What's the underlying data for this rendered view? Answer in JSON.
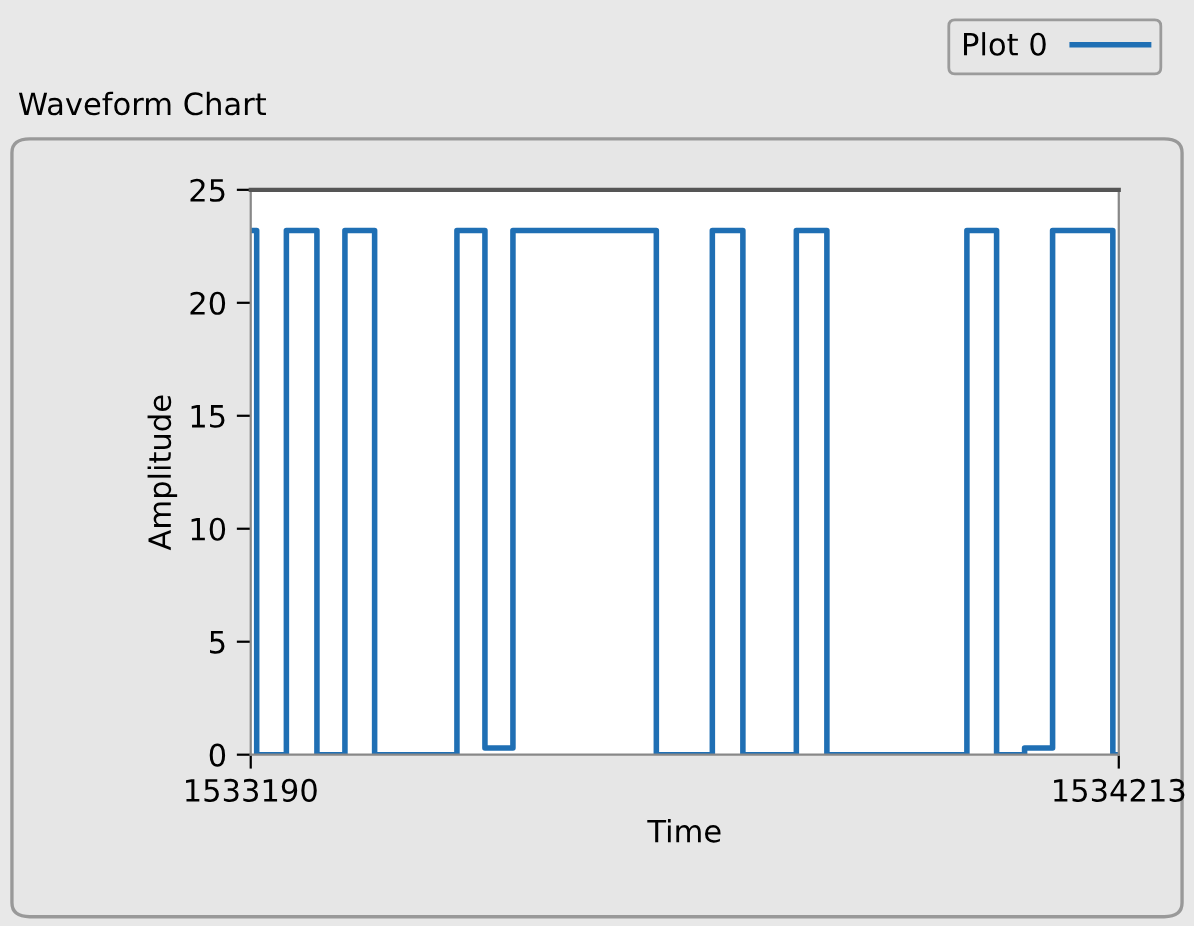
{
  "chart_data": {
    "type": "step",
    "title": "Waveform Chart",
    "xlabel": "Time",
    "ylabel": "Amplitude",
    "x": [
      1533190,
      1533197,
      1533232,
      1533268,
      1533301,
      1533336,
      1533433,
      1533466,
      1533499,
      1533668,
      1533734,
      1533770,
      1533833,
      1533869,
      1534034,
      1534069,
      1534102,
      1534135,
      1534206,
      1534213
    ],
    "series": [
      {
        "name": "Plot 0",
        "color": "#1f6fb4",
        "values": [
          23.2,
          0,
          23.2,
          0,
          23.2,
          0,
          23.2,
          0.3,
          23.2,
          0,
          23.2,
          0,
          23.2,
          0,
          23.2,
          0,
          0.3,
          23.2,
          0,
          0
        ]
      }
    ],
    "xlim": [
      1533190,
      1534213
    ],
    "xticks": [
      1533190,
      1534213
    ],
    "ylim": [
      0,
      25
    ],
    "yticks": [
      0,
      5,
      10,
      15,
      20,
      25
    ],
    "grid": false,
    "legend": "top right",
    "marker": "none",
    "line_style": "solid"
  }
}
